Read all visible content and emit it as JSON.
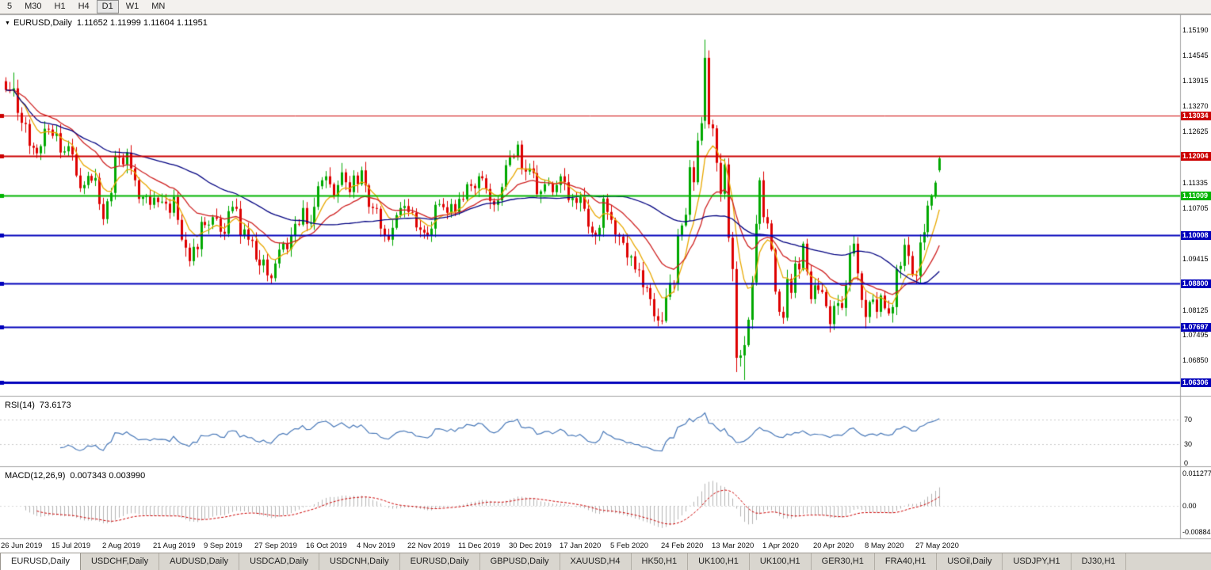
{
  "icons": {
    "chart_menu": "▼"
  },
  "toolbar": {
    "timeframes": [
      {
        "label": "5",
        "active": false
      },
      {
        "label": "M30",
        "active": false
      },
      {
        "label": "H1",
        "active": false
      },
      {
        "label": "H4",
        "active": false
      },
      {
        "label": "D1",
        "active": true
      },
      {
        "label": "W1",
        "active": false
      },
      {
        "label": "MN",
        "active": false
      }
    ]
  },
  "main_chart": {
    "title": "EURUSD,Daily",
    "ohlc_text": "1.11652 1.11999 1.11604 1.11951"
  },
  "chart_data": {
    "type": "candlestick",
    "symbol": "EURUSD",
    "period": "Daily",
    "price_range": [
      1.0612,
      1.1543
    ],
    "candle_colors": {
      "up": "#00A800",
      "down": "#DE0000"
    },
    "closes": [
      1.1368,
      1.1365,
      1.1372,
      1.131,
      1.1285,
      1.1282,
      1.1227,
      1.1222,
      1.1208,
      1.1226,
      1.127,
      1.1268,
      1.1252,
      1.1259,
      1.121,
      1.1213,
      1.1226,
      1.1205,
      1.1152,
      1.112,
      1.1128,
      1.1151,
      1.1139,
      1.1146,
      1.108,
      1.1042,
      1.1087,
      1.1108,
      1.1201,
      1.1197,
      1.118,
      1.121,
      1.117,
      1.114,
      1.1093,
      1.1098,
      1.11,
      1.1078,
      1.1096,
      1.1085,
      1.1086,
      1.1081,
      1.1058,
      1.1098,
      1.104,
      1.099,
      1.097,
      1.0936,
      1.0972,
      1.0966,
      1.1035,
      1.1027,
      1.1028,
      1.1047,
      1.1043,
      1.101,
      1.1005,
      1.1062,
      1.1073,
      1.1068,
      1.1,
      1.1016,
      1.099,
      1.0987,
      1.094,
      1.0925,
      1.094,
      1.09,
      1.0893,
      1.093,
      1.0965,
      1.098,
      1.0966,
      1.1,
      1.103,
      1.1028,
      1.107,
      1.103,
      1.1032,
      1.1073,
      1.1125,
      1.114,
      1.115,
      1.113,
      1.11,
      1.1128,
      1.116,
      1.1135,
      1.111,
      1.1152,
      1.113,
      1.1165,
      1.1127,
      1.1073,
      1.107,
      1.1068,
      1.1018,
      1.1,
      1.099,
      1.102,
      1.1052,
      1.107,
      1.1075,
      1.106,
      1.1058,
      1.1021,
      1.1015,
      1.1008,
      1.1,
      1.1018,
      1.1078,
      1.108,
      1.1072,
      1.1058,
      1.108,
      1.106,
      1.1093,
      1.1092,
      1.113,
      1.1126,
      1.112,
      1.115,
      1.1145,
      1.1118,
      1.1088,
      1.1078,
      1.1089,
      1.1123,
      1.1178,
      1.1198,
      1.1199,
      1.123,
      1.117,
      1.1162,
      1.117,
      1.1158,
      1.1105,
      1.1112,
      1.113,
      1.1132,
      1.111,
      1.1128,
      1.115,
      1.1135,
      1.109,
      1.1095,
      1.1083,
      1.1098,
      1.1068,
      1.1023,
      1.1008,
      1.1,
      1.102,
      1.1094,
      1.106,
      1.104,
      1.1003,
      1.0998,
      1.0982,
      1.0945,
      1.0948,
      1.0915,
      1.0913,
      1.087,
      1.0868,
      1.084,
      1.0797,
      1.0786,
      1.0785,
      1.0846,
      1.0881,
      1.088,
      1.1,
      1.1026,
      1.1053,
      1.1173,
      1.1135,
      1.124,
      1.1284,
      1.1449,
      1.1281,
      1.1271,
      1.1184,
      1.1106,
      1.118,
      1.0995,
      1.0916,
      1.0692,
      1.0698,
      1.0724,
      1.0788,
      1.0882,
      1.103,
      1.114,
      1.1047,
      1.1031,
      1.0965,
      1.0859,
      1.0808,
      1.0793,
      1.0891,
      1.0856,
      1.093,
      1.0915,
      1.098,
      1.091,
      1.084,
      1.0875,
      1.0863,
      1.0858,
      1.0822,
      1.0777,
      1.0823,
      1.083,
      1.0818,
      1.0875,
      1.0955,
      1.098,
      1.0905,
      1.0838,
      1.0795,
      1.0833,
      1.0839,
      1.0808,
      1.0849,
      1.0817,
      1.0804,
      1.082,
      1.0916,
      1.0924,
      1.0977,
      1.0949,
      1.0901,
      1.0899,
      1.0983,
      1.1009,
      1.1076,
      1.1101,
      1.1134,
      1.11951
    ],
    "overrides": {
      "0": {
        "open": 1.139,
        "high": 1.14
      },
      "2": {
        "high": 1.1412
      },
      "25": {
        "low": 1.1027
      },
      "67": {
        "low": 1.0885
      },
      "68": {
        "low": 1.0879
      },
      "131": {
        "high": 1.1239
      },
      "179": {
        "open": 1.129,
        "high": 1.1495,
        "low": 1.127
      },
      "186": {
        "low": 1.0885
      },
      "187": {
        "low": 1.0656
      },
      "188": {
        "low": 1.067
      },
      "189": {
        "low": 1.0636
      },
      "211": {
        "low": 1.0756
      },
      "220": {
        "low": 1.0766
      },
      "239": {
        "open": 1.11652,
        "high": 1.11999,
        "low": 1.11604,
        "close": 1.11951
      }
    },
    "moving_averages": [
      {
        "period": 8,
        "color": "#E8A800"
      },
      {
        "period": 21,
        "color": "#CE2020"
      },
      {
        "period": 50,
        "color": "#000080"
      }
    ],
    "level_lines": [
      {
        "price": 1.13034,
        "label": "1.13034",
        "color": "#CC0000",
        "width": 1
      },
      {
        "price": 1.12004,
        "label": "1.12004",
        "color": "#CC0000",
        "width": 2
      },
      {
        "price": 1.11009,
        "label": "1.11009",
        "color": "#00B400",
        "width": 2
      },
      {
        "price": 1.10008,
        "label": "1.10008",
        "color": "#0000BB",
        "width": 2
      },
      {
        "price": 1.088,
        "label": "1.08800",
        "color": "#0000BB",
        "width": 2
      },
      {
        "price": 1.07697,
        "label": "1.07697",
        "color": "#0000BB",
        "width": 2
      },
      {
        "price": 1.06306,
        "label": "1.06306",
        "color": "#0000BB",
        "width": 3
      }
    ],
    "y_axis_labels": [
      "1.15190",
      "1.14545",
      "1.13915",
      "1.13270",
      "1.12625",
      "1.11335",
      "1.10705",
      "1.09415",
      "1.08125",
      "1.07495",
      "1.06850"
    ],
    "date_labels": [
      {
        "i": 0,
        "t": "26 Jun 2019"
      },
      {
        "i": 13,
        "t": "15 Jul 2019"
      },
      {
        "i": 26,
        "t": "2 Aug 2019"
      },
      {
        "i": 39,
        "t": "21 Aug 2019"
      },
      {
        "i": 52,
        "t": "9 Sep 2019"
      },
      {
        "i": 65,
        "t": "27 Sep 2019"
      },
      {
        "i": 78,
        "t": "16 Oct 2019"
      },
      {
        "i": 91,
        "t": "4 Nov 2019"
      },
      {
        "i": 104,
        "t": "22 Nov 2019"
      },
      {
        "i": 117,
        "t": "11 Dec 2019"
      },
      {
        "i": 130,
        "t": "30 Dec 2019"
      },
      {
        "i": 143,
        "t": "17 Jan 2020"
      },
      {
        "i": 156,
        "t": "5 Feb 2020"
      },
      {
        "i": 169,
        "t": "24 Feb 2020"
      },
      {
        "i": 182,
        "t": "13 Mar 2020"
      },
      {
        "i": 195,
        "t": "1 Apr 2020"
      },
      {
        "i": 208,
        "t": "20 Apr 2020"
      },
      {
        "i": 221,
        "t": "8 May 2020"
      },
      {
        "i": 234,
        "t": "27 May 2020"
      }
    ]
  },
  "rsi": {
    "label": "RSI(14)",
    "value": "73.6173",
    "period": 14,
    "axis_labels": [
      "70",
      "30",
      "0"
    ],
    "levels": [
      70,
      30
    ],
    "color": "#4878B8",
    "range": [
      0,
      100
    ]
  },
  "macd": {
    "label": "MACD(12,26,9)",
    "values": "0.007343 0.003990",
    "fast": 12,
    "slow": 26,
    "signal": 9,
    "axis_labels": [
      "0.011277",
      "0.00",
      "-0.00884"
    ],
    "range": [
      -0.01,
      0.012
    ],
    "hist_color": "#B4B4B4",
    "signal_color": "#CC0000"
  },
  "tabs": [
    {
      "label": "EURUSD,Daily",
      "active": true
    },
    {
      "label": "USDCHF,Daily",
      "active": false
    },
    {
      "label": "AUDUSD,Daily",
      "active": false
    },
    {
      "label": "USDCAD,Daily",
      "active": false
    },
    {
      "label": "USDCNH,Daily",
      "active": false
    },
    {
      "label": "EURUSD,Daily",
      "active": false
    },
    {
      "label": "GBPUSD,Daily",
      "active": false
    },
    {
      "label": "XAUUSD,H4",
      "active": false
    },
    {
      "label": "HK50,H1",
      "active": false
    },
    {
      "label": "UK100,H1",
      "active": false
    },
    {
      "label": "UK100,H1",
      "active": false
    },
    {
      "label": "GER30,H1",
      "active": false
    },
    {
      "label": "FRA40,H1",
      "active": false
    },
    {
      "label": "USOil,Daily",
      "active": false
    },
    {
      "label": "USDJPY,H1",
      "active": false
    },
    {
      "label": "DJ30,H1",
      "active": false
    }
  ]
}
